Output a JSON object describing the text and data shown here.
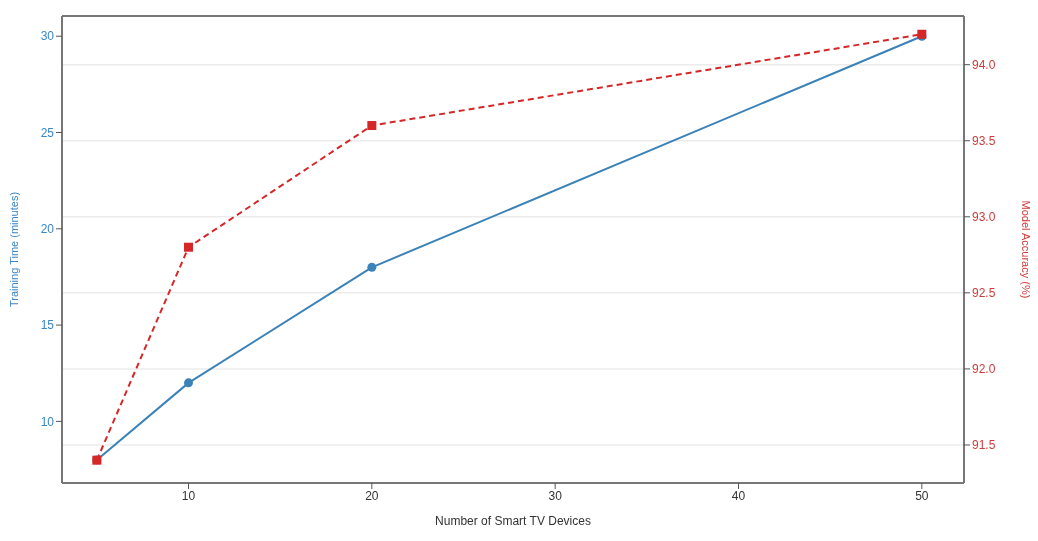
{
  "chart_data": {
    "type": "line",
    "xlabel": "Number of Smart TV Devices",
    "ylabel": "Training Time (minutes)",
    "y2label": "Model Accuracy (%)",
    "x": [
      5,
      10,
      20,
      50
    ],
    "series": [
      {
        "color": "#3b82b8",
        "values": [
          8,
          12,
          18,
          30
        ],
        "marker": "circle",
        "line_style": "solid"
      },
      {
        "color": "#d62728",
        "values": [
          91.4,
          92.8,
          93.6,
          94.2
        ],
        "axis": "y2",
        "marker": "square",
        "line_style": "dashed"
      }
    ],
    "xlim": [
      3.1,
      52.3
    ],
    "xticks": [
      10,
      20,
      30,
      40,
      50
    ],
    "ylim": [
      6.8,
      31.05
    ],
    "yticks": [
      10,
      15,
      20,
      25,
      30
    ],
    "y2lim": [
      91.25,
      94.32
    ],
    "y2ticks": [
      91.5,
      {
        "value": 92,
        "label": "92.0"
      },
      92.5,
      {
        "value": 93,
        "label": "93.0"
      },
      93.5,
      {
        "value": 94,
        "label": "94.0"
      }
    ],
    "grid": "y2"
  }
}
